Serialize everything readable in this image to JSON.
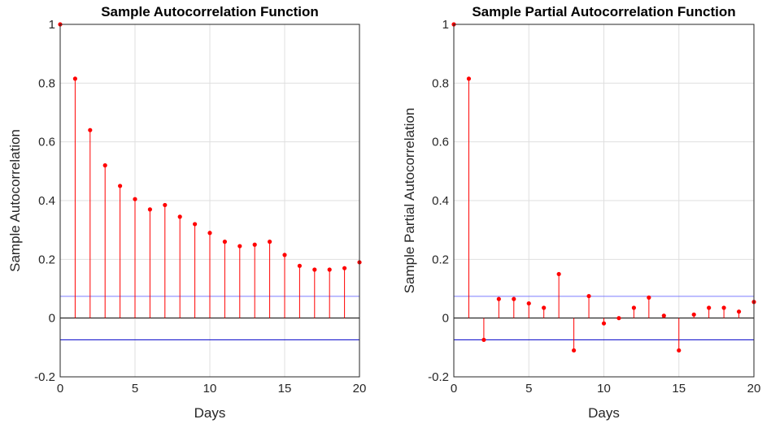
{
  "chart_data": [
    {
      "type": "stem",
      "title": "Sample Autocorrelation Function",
      "xlabel": "Days",
      "ylabel": "Sample Autocorrelation",
      "xlim": [
        0,
        20
      ],
      "ylim": [
        -0.2,
        1
      ],
      "xticks": [
        "0",
        "5",
        "10",
        "15",
        "20"
      ],
      "yticks": [
        "-0.2",
        "0",
        "0.2",
        "0.4",
        "0.6",
        "0.8",
        "1"
      ],
      "grid": true,
      "x": [
        0,
        1,
        2,
        3,
        4,
        5,
        6,
        7,
        8,
        9,
        10,
        11,
        12,
        13,
        14,
        15,
        16,
        17,
        18,
        19,
        20
      ],
      "values": [
        1.0,
        0.815,
        0.64,
        0.52,
        0.45,
        0.405,
        0.37,
        0.385,
        0.345,
        0.32,
        0.29,
        0.26,
        0.245,
        0.25,
        0.26,
        0.215,
        0.178,
        0.165,
        0.165,
        0.17,
        0.19
      ],
      "confidence_bounds": [
        0.074,
        -0.074
      ],
      "stem_color": "#ff0000",
      "bound_colors": [
        "#7b7bff",
        "#0000c8"
      ]
    },
    {
      "type": "stem",
      "title": "Sample Partial Autocorrelation Function",
      "xlabel": "Days",
      "ylabel": "Sample Partial Autocorrelation",
      "xlim": [
        0,
        20
      ],
      "ylim": [
        -0.2,
        1
      ],
      "xticks": [
        "0",
        "5",
        "10",
        "15",
        "20"
      ],
      "yticks": [
        "-0.2",
        "0",
        "0.2",
        "0.4",
        "0.6",
        "0.8",
        "1"
      ],
      "grid": true,
      "x": [
        0,
        1,
        2,
        3,
        4,
        5,
        6,
        7,
        8,
        9,
        10,
        11,
        12,
        13,
        14,
        15,
        16,
        17,
        18,
        19,
        20
      ],
      "values": [
        1.0,
        0.815,
        -0.074,
        0.065,
        0.065,
        0.05,
        0.035,
        0.15,
        -0.11,
        0.075,
        -0.018,
        0.0,
        0.035,
        0.07,
        0.008,
        -0.11,
        0.012,
        0.035,
        0.035,
        0.022,
        0.055
      ],
      "confidence_bounds": [
        0.074,
        -0.074
      ],
      "stem_color": "#ff0000",
      "bound_colors": [
        "#7b7bff",
        "#0000c8"
      ]
    }
  ]
}
